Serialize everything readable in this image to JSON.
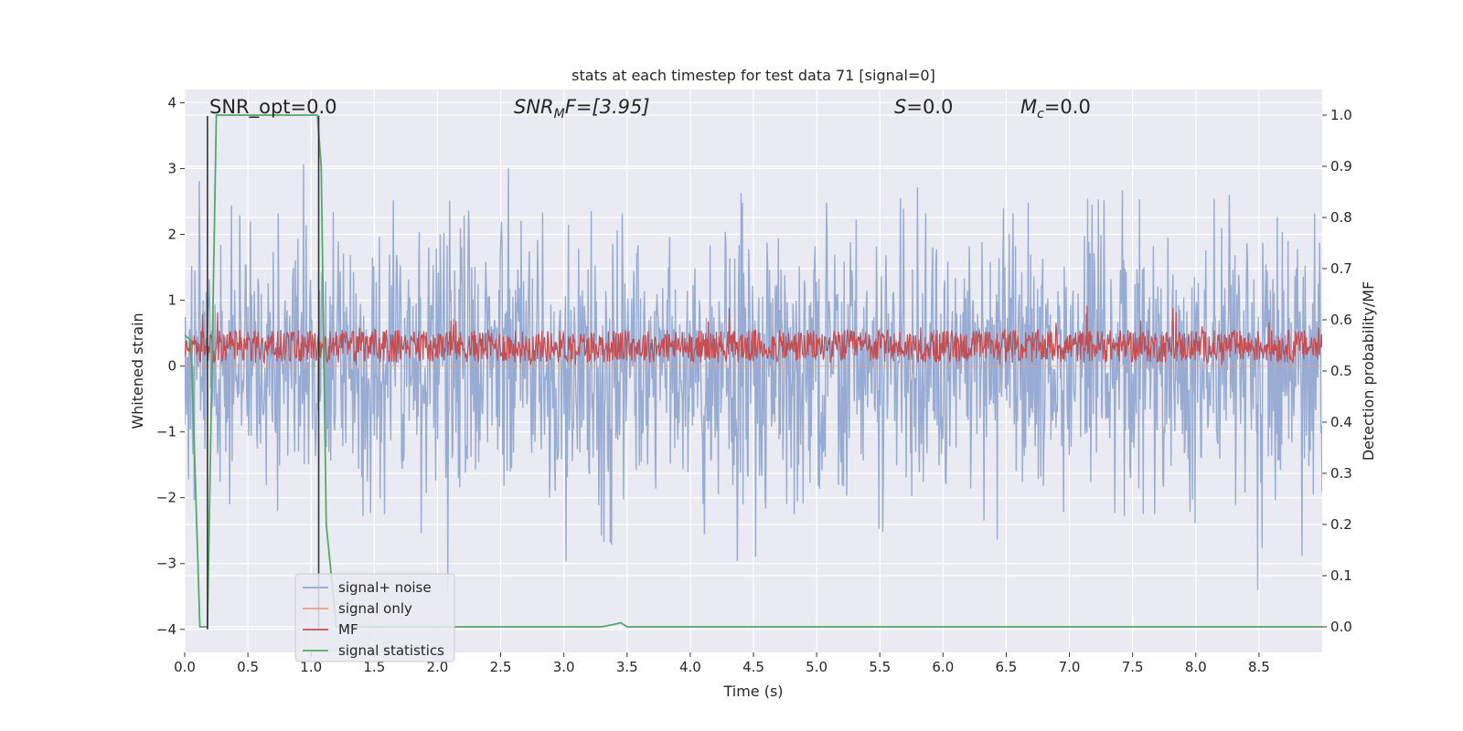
{
  "chart_data": {
    "type": "line",
    "title": "stats at each timestep for test data 71 [signal=0]",
    "xlabel": "Time (s)",
    "ylabel": "Whitened strain",
    "ylabel_right": "Detection probability/MF",
    "xlim": [
      0.0,
      9.0
    ],
    "ylim": [
      -4.35,
      4.2
    ],
    "ylim_right": [
      -0.05,
      1.05
    ],
    "x_ticks": [
      0.0,
      0.5,
      1.0,
      1.5,
      2.0,
      2.5,
      3.0,
      3.5,
      4.0,
      4.5,
      5.0,
      5.5,
      6.0,
      6.5,
      7.0,
      7.5,
      8.0,
      8.5
    ],
    "x_tick_labels": [
      "0.0",
      "0.5",
      "1.0",
      "1.5",
      "2.0",
      "2.5",
      "3.0",
      "3.5",
      "4.0",
      "4.5",
      "5.0",
      "5.5",
      "6.0",
      "6.5",
      "7.0",
      "7.5",
      "8.0",
      "8.5"
    ],
    "y_ticks": [
      4,
      3,
      2,
      1,
      0,
      -1,
      -2,
      -3,
      -4
    ],
    "y_tick_labels": [
      "4",
      "3",
      "2",
      "1",
      "0",
      "−1",
      "−2",
      "−3",
      "−4"
    ],
    "y_right_ticks": [
      1.0,
      0.9,
      0.8,
      0.7,
      0.6,
      0.5,
      0.4,
      0.3,
      0.2,
      0.1,
      0.0
    ],
    "y_right_tick_labels": [
      "1.0",
      "0.9",
      "0.8",
      "0.7",
      "0.6",
      "0.5",
      "0.4",
      "0.3",
      "0.2",
      "0.1",
      "0.0"
    ],
    "grid": true,
    "legend_position": "lower-left",
    "annotations": {
      "snr_opt": "SNR_opt=0.0",
      "snr_mf_main": "SNR",
      "snr_mf_sub": "M",
      "snr_mf_rest": "F=[3.95]",
      "s_var": "S",
      "s_rest": "=0.0",
      "mc_var": "M",
      "mc_sub": "c",
      "mc_rest": "=0.0"
    },
    "series": [
      {
        "name": "signal+ noise",
        "color": "#92a8d1",
        "axis": "left",
        "description": "dense whitened noise spanning roughly -3.4 to 3.8",
        "sample_count": 1800,
        "amplitude_sigma": 1.0
      },
      {
        "name": "signal only",
        "color": "#e8a07e",
        "axis": "left",
        "x": [
          0.0,
          9.0
        ],
        "y": [
          0.0,
          0.0
        ]
      },
      {
        "name": "MF",
        "color": "#c44e52",
        "axis": "left",
        "description": "matched filter output fluctuating around 0.3",
        "center": 0.3,
        "spread": 0.5,
        "sample_count": 1800
      },
      {
        "name": "signal statistics",
        "color": "#55a868",
        "axis": "right",
        "x": [
          0.0,
          0.05,
          0.12,
          0.18,
          0.25,
          1.05,
          1.08,
          1.12,
          1.2,
          3.3,
          3.4,
          3.45,
          3.5,
          9.0
        ],
        "y": [
          0.57,
          0.56,
          0.0,
          0.0,
          1.0,
          1.0,
          0.9,
          0.2,
          0.0,
          0.0,
          0.005,
          0.008,
          0.0,
          0.0
        ]
      }
    ],
    "vertical_markers": [
      {
        "x": 0.18,
        "y_bottom": -4.0,
        "y_top": 3.8,
        "color": "#333333"
      },
      {
        "x": 1.06,
        "y_bottom": -4.0,
        "y_top": 3.8,
        "color": "#333333"
      }
    ]
  }
}
